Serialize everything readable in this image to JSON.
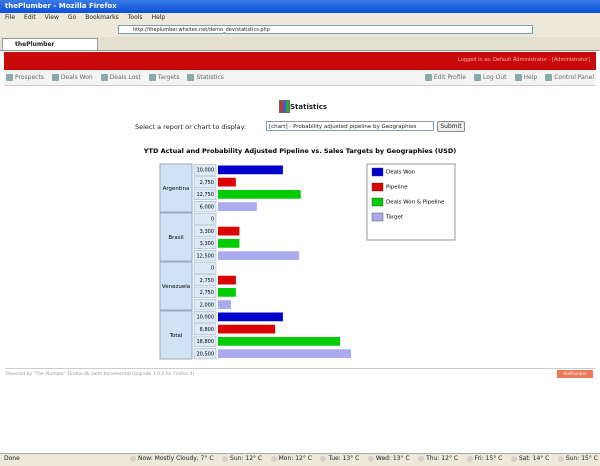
{
  "window": {
    "title": "thePlumber - Mozilla Firefox",
    "menu": [
      "File",
      "Edit",
      "View",
      "Go",
      "Bookmarks",
      "Tools",
      "Help"
    ],
    "url": "http://theplumber.whsites.net/demo_dev/statistics.php",
    "tab": "thePlumber"
  },
  "app": {
    "login": "Logged in as: Default Administrator - [Administrator]",
    "nav_left": [
      "Prospects",
      "Deals Won",
      "Deals Lost",
      "Targets",
      "Statistics"
    ],
    "nav_right": [
      "Edit Profile",
      "Log Out",
      "Help",
      "Control Panel"
    ]
  },
  "page": {
    "heading": "Statistics",
    "select_label": "Select a report or chart to display:",
    "select_value": "[chart] - Probability adjusted pipeline by Geographies",
    "button": "Submit",
    "footer": "Powered by \"The Plumber\" Firefox-4k (with Incremental Upgrade 1.0.2 for Firefox 4)",
    "badge": "thePlumber"
  },
  "chart_data": {
    "type": "bar",
    "orientation": "horizontal",
    "title": "YTD Actual and Probability Adjusted Pipeline vs. Sales Targets by Geographies (USD)",
    "categories": [
      "Argentina",
      "Brasil",
      "Venezuela",
      "Total"
    ],
    "series": [
      {
        "name": "Deals Won",
        "color": "#0000cc",
        "values": [
          10000,
          0,
          0,
          10000
        ],
        "value_labels": [
          "10,000",
          "0",
          "0",
          "10,000"
        ]
      },
      {
        "name": "Pipeline",
        "color": "#dd0000",
        "values": [
          2750,
          3300,
          2750,
          8800
        ],
        "value_labels": [
          "2,750",
          "3,300",
          "2,750",
          "8,800"
        ]
      },
      {
        "name": "Deals Won & Pipeline",
        "color": "#00cc00",
        "values": [
          12750,
          3300,
          2750,
          18800
        ],
        "value_labels": [
          "12,750",
          "3,300",
          "2,750",
          "18,800"
        ]
      },
      {
        "name": "Target",
        "color": "#aaaaee",
        "values": [
          6000,
          12500,
          2000,
          20500
        ],
        "value_labels": [
          "6,000",
          "12,500",
          "2,000",
          "20,500"
        ]
      }
    ],
    "legend": "right"
  },
  "status": {
    "text": "Done",
    "weather": [
      "Now: Mostly Cloudy, 7° C",
      "Sun: 12° C",
      "Mon: 12° C",
      "Tue: 13° C",
      "Wed: 13° C",
      "Thu: 12° C",
      "Fri: 15° C",
      "Sat: 14° C",
      "Sun: 15° C"
    ]
  }
}
